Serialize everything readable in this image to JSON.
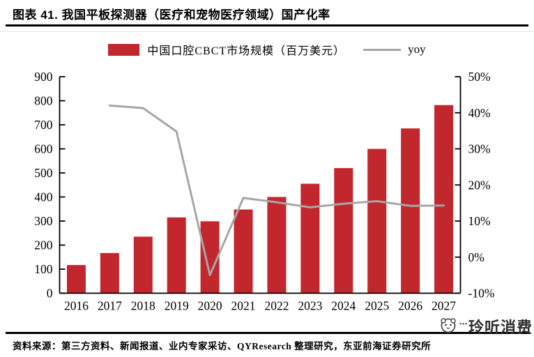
{
  "title": "图表 41. 我国平板探测器（医疗和宠物医疗领域）国产化率",
  "legend": {
    "bar_label": "中国口腔CBCT市场规模（百万美元）",
    "line_label": "yoy"
  },
  "watermark": {
    "text": "玲听消费",
    "dots": "···"
  },
  "source": "资料来源：第三方资料、新闻报道、业内专家采访、QYResearch 整理研究，东亚前海证券研究所",
  "colors": {
    "bar": "#c1272d",
    "line": "#a6a6a6",
    "axis": "#000000",
    "text": "#000000"
  },
  "chart_data": {
    "type": "bar",
    "title": "中国口腔CBCT市场规模与增速",
    "categories": [
      "2016",
      "2017",
      "2018",
      "2019",
      "2020",
      "2021",
      "2022",
      "2023",
      "2024",
      "2025",
      "2026",
      "2027"
    ],
    "series": [
      {
        "name": "中国口腔CBCT市场规模（百万美元）",
        "type": "bar",
        "axis": "left",
        "values": [
          117,
          167,
          235,
          315,
          299,
          348,
          400,
          455,
          520,
          600,
          685,
          782
        ]
      },
      {
        "name": "yoy",
        "type": "line",
        "axis": "right",
        "values": [
          null,
          42,
          41.3,
          34.8,
          -5,
          16.4,
          15.2,
          13.8,
          14.8,
          15.5,
          14.2,
          14.3
        ]
      }
    ],
    "left_axis": {
      "min": 0,
      "max": 900,
      "step": 100,
      "tick_labels": [
        "0",
        "100",
        "200",
        "300",
        "400",
        "500",
        "600",
        "700",
        "800",
        "900"
      ]
    },
    "right_axis": {
      "min": -10,
      "max": 50,
      "step": 10,
      "tick_labels": [
        "-10%",
        "0%",
        "10%",
        "20%",
        "30%",
        "40%",
        "50%"
      ]
    },
    "grid": false,
    "legend_position": "top"
  }
}
